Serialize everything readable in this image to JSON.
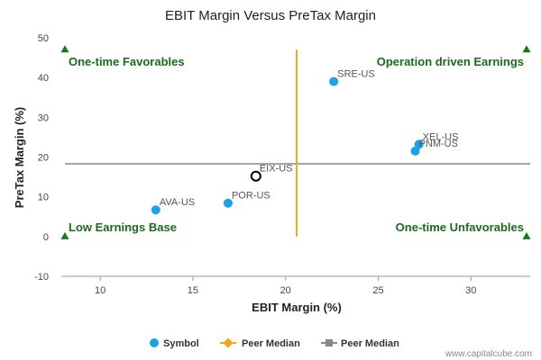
{
  "chart_data": {
    "type": "scatter",
    "title": "EBIT Margin Versus PreTax Margin",
    "xlabel": "EBIT Margin (%)",
    "ylabel": "PreTax Margin (%)",
    "xlim": [
      7.9,
      33.2
    ],
    "ylim": [
      -10,
      50
    ],
    "xticks": [
      10,
      15,
      20,
      25,
      30
    ],
    "yticks": [
      -10,
      0,
      10,
      20,
      30,
      40,
      50
    ],
    "points": [
      {
        "label": "SRE-US",
        "x": 22.6,
        "y": 39.0,
        "highlight": false
      },
      {
        "label": "XEL-US",
        "x": 27.2,
        "y": 23.2,
        "highlight": false
      },
      {
        "label": "PNM-US",
        "x": 27.0,
        "y": 21.5,
        "highlight": false
      },
      {
        "label": "EIX-US",
        "x": 18.4,
        "y": 15.2,
        "highlight": true
      },
      {
        "label": "POR-US",
        "x": 16.9,
        "y": 8.4,
        "highlight": false
      },
      {
        "label": "AVA-US",
        "x": 13.0,
        "y": 6.7,
        "highlight": false
      }
    ],
    "peer_median_x": 20.6,
    "peer_median_y": 18.3,
    "quadrants": {
      "top_left": "One-time Favorables",
      "top_right": "Operation driven Earnings",
      "bottom_left": "Low Earnings Base",
      "bottom_right": "One-time Unfavorables"
    },
    "legend": [
      {
        "label": "Symbol",
        "color": "#1aa3e8",
        "marker": "circle"
      },
      {
        "label": "Peer Median",
        "color": "#f5a623",
        "marker": "diamond"
      },
      {
        "label": "Peer Median",
        "color": "#888888",
        "marker": "square"
      }
    ],
    "legend_position": "bottom",
    "grid": false,
    "colors": {
      "point": "#1aa3e8",
      "highlight_stroke": "#000000",
      "median_x_line": "#f5a623",
      "median_y_line": "#888888",
      "quadrant_marker": "#1a7a1a"
    }
  },
  "credit": "www.capitalcube.com"
}
